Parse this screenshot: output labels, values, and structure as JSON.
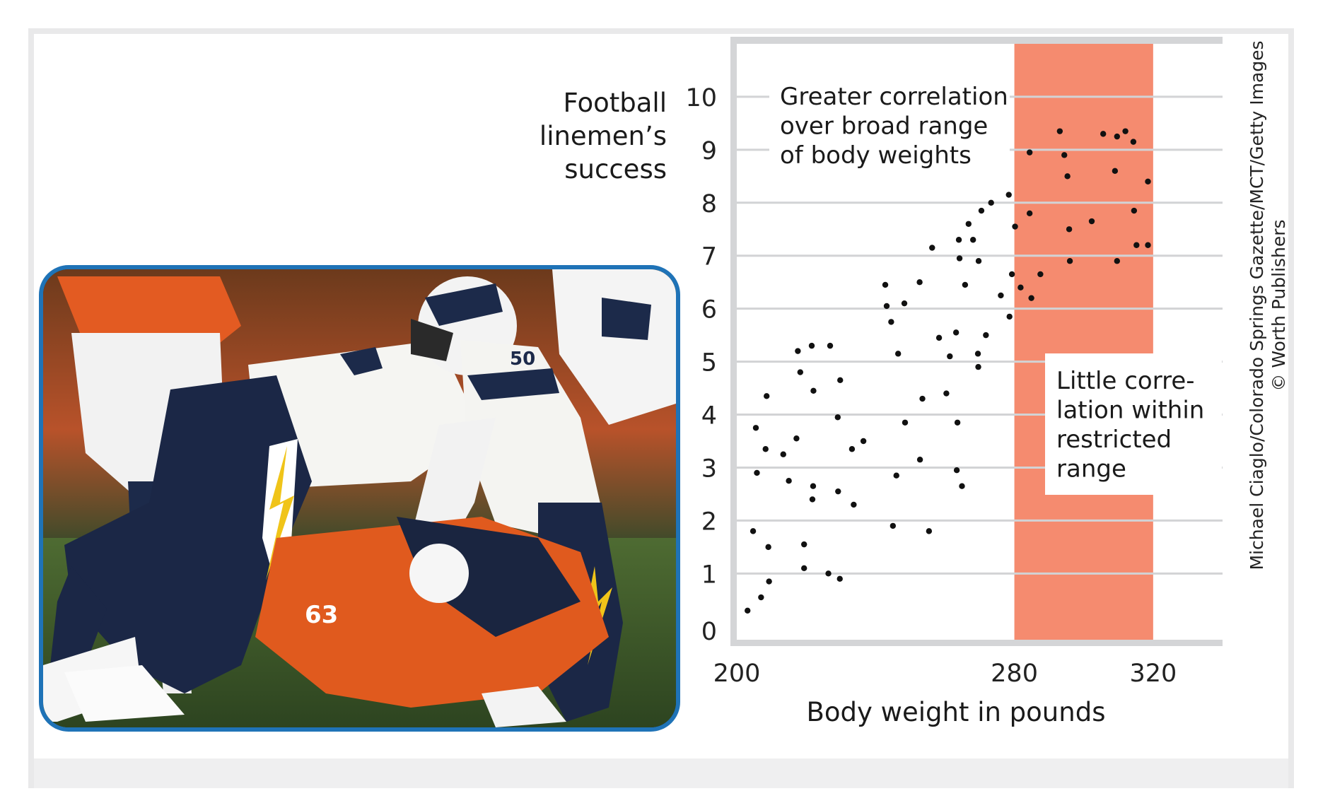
{
  "chart_data": {
    "type": "scatter",
    "ylabel": "Football linemen’s success",
    "xlabel": "Body weight in pounds",
    "x_ticks": [
      "200",
      "280",
      "320"
    ],
    "y_ticks": [
      "0",
      "1",
      "2",
      "3",
      "4",
      "5",
      "6",
      "7",
      "8",
      "9",
      "10"
    ],
    "xlim": [
      200,
      340
    ],
    "ylim": [
      -0.25,
      11
    ],
    "grid": true,
    "highlight_band": {
      "x_range": [
        280,
        320
      ],
      "color": "#f58b6f"
    },
    "annotations": [
      {
        "id": "broad",
        "lines": [
          "Greater correlation",
          "over broad range",
          "of body weights"
        ]
      },
      {
        "id": "restricted",
        "lines": [
          "Little corre-",
          "lation within",
          "restricted",
          "range"
        ]
      }
    ],
    "points": [
      [
        203.1,
        0.3
      ],
      [
        204.7,
        1.8
      ],
      [
        205.5,
        3.75
      ],
      [
        205.8,
        2.9
      ],
      [
        207,
        0.55
      ],
      [
        208.3,
        3.35
      ],
      [
        208.6,
        4.35
      ],
      [
        209.1,
        1.5
      ],
      [
        209.3,
        0.85
      ],
      [
        213.4,
        3.25
      ],
      [
        215,
        2.75
      ],
      [
        217.2,
        3.55
      ],
      [
        217.6,
        5.2
      ],
      [
        218.3,
        4.8
      ],
      [
        219.4,
        1.55
      ],
      [
        219.4,
        1.1
      ],
      [
        221.6,
        5.3
      ],
      [
        221.8,
        2.4
      ],
      [
        222,
        2.65
      ],
      [
        222.1,
        4.45
      ],
      [
        226.4,
        1.0
      ],
      [
        226.9,
        5.3
      ],
      [
        229.1,
        3.95
      ],
      [
        229.2,
        2.55
      ],
      [
        229.7,
        0.9
      ],
      [
        229.8,
        4.65
      ],
      [
        233.2,
        3.35
      ],
      [
        233.7,
        2.3
      ],
      [
        236.5,
        3.5
      ],
      [
        242.8,
        6.45
      ],
      [
        243.2,
        6.05
      ],
      [
        244.5,
        5.75
      ],
      [
        245,
        1.9
      ],
      [
        246,
        2.85
      ],
      [
        246.5,
        5.15
      ],
      [
        248.3,
        6.1
      ],
      [
        248.5,
        3.85
      ],
      [
        252.7,
        6.5
      ],
      [
        252.8,
        3.15
      ],
      [
        253.5,
        4.3
      ],
      [
        255.4,
        1.8
      ],
      [
        256.3,
        7.15
      ],
      [
        258.3,
        5.45
      ],
      [
        260.4,
        4.4
      ],
      [
        261.4,
        5.1
      ],
      [
        263.2,
        5.55
      ],
      [
        263.6,
        3.85
      ],
      [
        263.4,
        2.95
      ],
      [
        264,
        7.3
      ],
      [
        264.2,
        6.95
      ],
      [
        264.9,
        2.65
      ],
      [
        265.8,
        6.45
      ],
      [
        266.8,
        7.6
      ],
      [
        268.1,
        7.3
      ],
      [
        269.5,
        5.15
      ],
      [
        269.6,
        4.9
      ],
      [
        269.7,
        6.9
      ],
      [
        270.5,
        7.85
      ],
      [
        271.8,
        5.5
      ],
      [
        273.3,
        8.0
      ],
      [
        276.1,
        6.25
      ],
      [
        278.4,
        8.15
      ],
      [
        278.6,
        5.85
      ],
      [
        279.3,
        6.65
      ],
      [
        280.2,
        7.55
      ],
      [
        281.8,
        6.4
      ],
      [
        284.4,
        7.8
      ],
      [
        284.4,
        8.95
      ],
      [
        284.9,
        6.2
      ],
      [
        287.5,
        6.65
      ],
      [
        293.1,
        9.35
      ],
      [
        294.4,
        8.9
      ],
      [
        295.3,
        8.5
      ],
      [
        295.8,
        7.5
      ],
      [
        296,
        6.9
      ],
      [
        302.3,
        7.65
      ],
      [
        305.6,
        9.3
      ],
      [
        309,
        8.6
      ],
      [
        309.6,
        6.9
      ],
      [
        309.6,
        9.25
      ],
      [
        312,
        9.35
      ],
      [
        314.3,
        9.15
      ],
      [
        314.5,
        7.85
      ],
      [
        315.2,
        7.2
      ],
      [
        318.5,
        7.2
      ],
      [
        318.5,
        8.4
      ]
    ]
  },
  "photo": {
    "jersey_number_1": "63",
    "jersey_number_2": "50"
  },
  "credit": {
    "line1": "Michael Ciaglo/Colorado Springs Gazette/MCT/Getty Images",
    "line2": "© Worth Publishers"
  }
}
